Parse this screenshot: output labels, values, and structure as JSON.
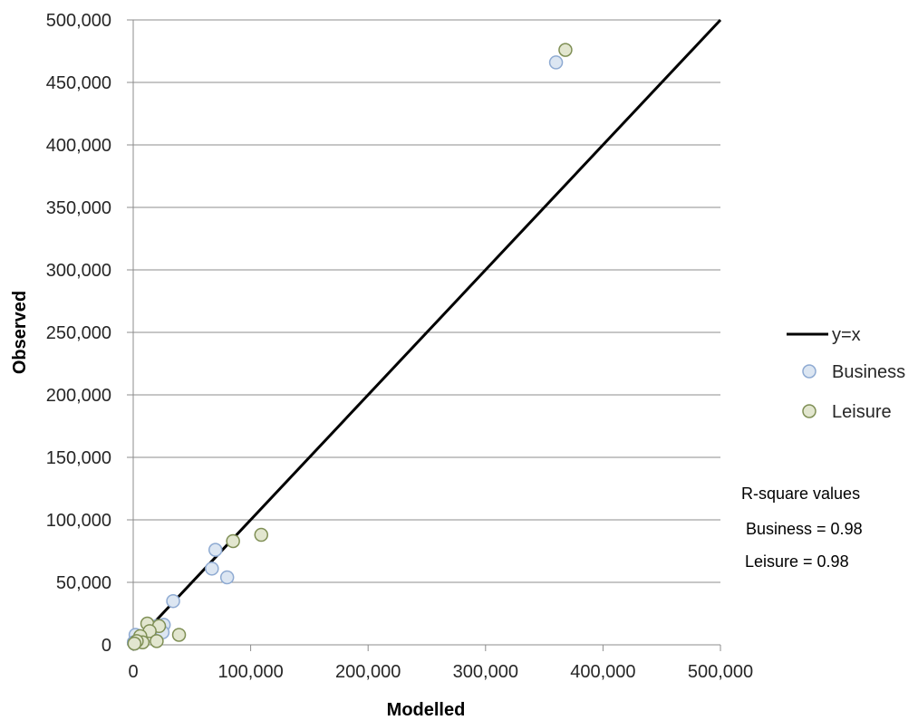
{
  "chart_data": {
    "type": "scatter",
    "xlabel": "Modelled",
    "ylabel": "Observed",
    "xlim": [
      0,
      500000
    ],
    "ylim": [
      0,
      500000
    ],
    "x_ticks": [
      "0",
      "100,000",
      "200,000",
      "300,000",
      "400,000",
      "500,000"
    ],
    "y_ticks": [
      "0",
      "50,000",
      "100,000",
      "150,000",
      "200,000",
      "250,000",
      "300,000",
      "350,000",
      "400,000",
      "450,000",
      "500,000"
    ],
    "grid": "horizontal",
    "legend_position": "right",
    "reference_line": {
      "name": "y=x",
      "color": "#000000"
    },
    "series": [
      {
        "name": "Business",
        "color": "#dce6f2",
        "edge": "#8eaad2",
        "points": [
          [
            360000,
            466000
          ],
          [
            70000,
            76000
          ],
          [
            67000,
            61000
          ],
          [
            80000,
            54000
          ],
          [
            34000,
            35000
          ],
          [
            26000,
            16000
          ],
          [
            20000,
            15000
          ],
          [
            25000,
            10000
          ],
          [
            2000,
            8000
          ],
          [
            5000,
            3000
          ],
          [
            1000,
            1000
          ],
          [
            500,
            2000
          ]
        ]
      },
      {
        "name": "Leisure",
        "color": "#e2e6cf",
        "edge": "#7f8f55",
        "points": [
          [
            368000,
            476000
          ],
          [
            109000,
            88000
          ],
          [
            85000,
            83000
          ],
          [
            12000,
            17000
          ],
          [
            22000,
            15000
          ],
          [
            14000,
            11000
          ],
          [
            39000,
            8000
          ],
          [
            6000,
            7000
          ],
          [
            20000,
            3000
          ],
          [
            8000,
            2000
          ],
          [
            3000,
            3000
          ],
          [
            1000,
            1000
          ]
        ]
      }
    ],
    "annotations": {
      "title": "R-square values",
      "business": "Business = 0.98",
      "leisure": "Leisure = 0.98"
    }
  }
}
